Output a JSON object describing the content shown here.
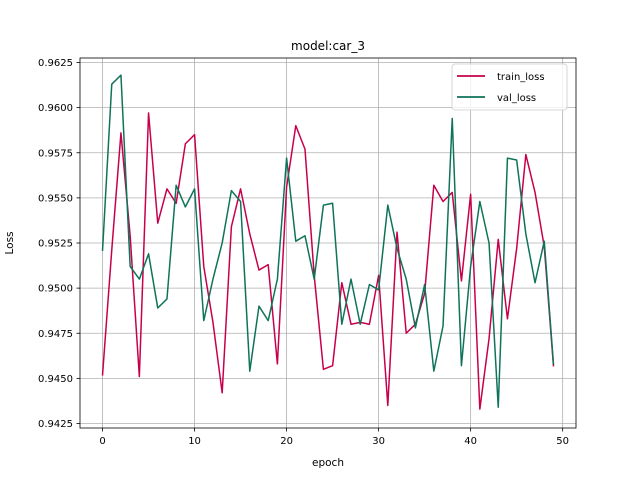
{
  "chart_data": {
    "type": "line",
    "title": "model:car_3",
    "xlabel": "epoch",
    "ylabel": "Loss",
    "xlim": [
      -2.45,
      51.45
    ],
    "ylim": [
      0.94225,
      0.96275
    ],
    "x_ticks": [
      0,
      10,
      20,
      30,
      40,
      50
    ],
    "y_ticks": [
      0.9425,
      0.945,
      0.9475,
      0.95,
      0.9525,
      0.955,
      0.9575,
      0.96,
      0.9625
    ],
    "y_tick_labels": [
      "0.9425",
      "0.9450",
      "0.9475",
      "0.9500",
      "0.9525",
      "0.9550",
      "0.9575",
      "0.9600",
      "0.9625"
    ],
    "grid": true,
    "legend_position": "top-right",
    "x": [
      0,
      1,
      2,
      3,
      4,
      5,
      6,
      7,
      8,
      9,
      10,
      11,
      12,
      13,
      14,
      15,
      16,
      17,
      18,
      19,
      20,
      21,
      22,
      23,
      24,
      25,
      26,
      27,
      28,
      29,
      30,
      31,
      32,
      33,
      34,
      35,
      36,
      37,
      38,
      39,
      40,
      41,
      42,
      43,
      44,
      45,
      46,
      47,
      48,
      49
    ],
    "series": [
      {
        "name": "train_loss",
        "color": "#c8004b",
        "values": [
          0.9452,
          0.9521,
          0.9586,
          0.9529,
          0.9451,
          0.9597,
          0.9536,
          0.9555,
          0.9547,
          0.958,
          0.9585,
          0.9512,
          0.9481,
          0.9442,
          0.9534,
          0.9555,
          0.953,
          0.951,
          0.9513,
          0.9458,
          0.9556,
          0.959,
          0.9577,
          0.9507,
          0.9455,
          0.9457,
          0.9503,
          0.948,
          0.9481,
          0.948,
          0.9507,
          0.9435,
          0.9531,
          0.9475,
          0.948,
          0.9497,
          0.9557,
          0.9548,
          0.9553,
          0.9504,
          0.9552,
          0.9433,
          0.9472,
          0.9527,
          0.9483,
          0.9522,
          0.9574,
          0.9553,
          0.9523,
          0.9457
        ]
      },
      {
        "name": "val_loss",
        "color": "#0f735a",
        "values": [
          0.9521,
          0.9613,
          0.9618,
          0.9512,
          0.9505,
          0.9519,
          0.9489,
          0.9494,
          0.9557,
          0.9545,
          0.9555,
          0.9482,
          0.9505,
          0.9525,
          0.9554,
          0.9548,
          0.9454,
          0.949,
          0.9482,
          0.9505,
          0.9572,
          0.9526,
          0.9529,
          0.9505,
          0.9546,
          0.9547,
          0.948,
          0.9505,
          0.948,
          0.9502,
          0.9499,
          0.9546,
          0.9522,
          0.9505,
          0.9478,
          0.9502,
          0.9454,
          0.9479,
          0.9594,
          0.9457,
          0.9512,
          0.9548,
          0.9525,
          0.9434,
          0.9572,
          0.9571,
          0.953,
          0.9503,
          0.9526,
          0.9458
        ]
      }
    ]
  }
}
